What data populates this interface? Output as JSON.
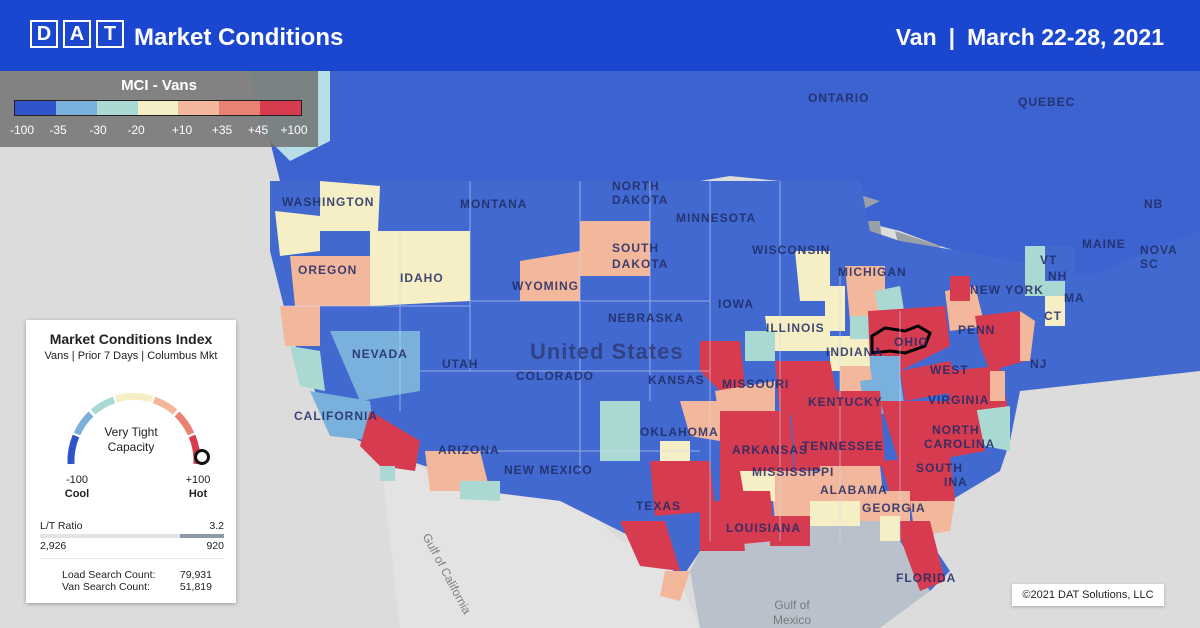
{
  "header": {
    "logo_letters": [
      "D",
      "A",
      "T"
    ],
    "title": "Market Conditions",
    "equipment": "Van",
    "separator": "|",
    "date_range": "March 22-28, 2021"
  },
  "legend": {
    "title": "MCI - Vans",
    "colors": [
      "#2f53c9",
      "#7ab0dc",
      "#a9d9d2",
      "#f6efc6",
      "#f3b89c",
      "#e98273",
      "#d73b50"
    ],
    "ticks": [
      "-100",
      "-35",
      "-30",
      "-20",
      "+10",
      "+35",
      "+45",
      "+100"
    ]
  },
  "card": {
    "title": "Market Conditions Index",
    "subtitle": "Vans | Prior 7 Days | Columbus Mkt",
    "gauge_label_line1": "Very Tight",
    "gauge_label_line2": "Capacity",
    "gauge_value": 100,
    "min_value": "-100",
    "min_label": "Cool",
    "max_value": "+100",
    "max_label": "Hot",
    "lt_ratio_label": "L/T Ratio",
    "lt_ratio_value": "3.2",
    "loads": "2,926",
    "trucks": "920",
    "load_search_label": "Load Search Count:",
    "load_search_value": "79,931",
    "van_search_label": "Van Search Count:",
    "van_search_value": "51,819"
  },
  "map": {
    "country_label": "United States",
    "selected_market": "Columbus",
    "labels": {
      "ontario": "ONTARIO",
      "quebec": "QUEBEC",
      "north_dakota_1": "NORTH",
      "north_dakota_2": "DAKOTA",
      "montana": "MONTANA",
      "washington": "WASHINGTON",
      "minnesota": "MINNESOTA",
      "south_dakota_1": "SOUTH",
      "south_dakota_2": "DAKOTA",
      "oregon": "OREGON",
      "idaho": "IDAHO",
      "wyoming": "WYOMING",
      "wisconsin": "WISCONSIN",
      "michigan": "MICHIGAN",
      "new_york": "NEW YORK",
      "maine": "MAINE",
      "nova_scotia": "NOVA SC",
      "nb": "NB",
      "vt": "VT",
      "nh": "NH",
      "ma": "MA",
      "ct": "CT",
      "nj": "NJ",
      "penn": "PENN",
      "nebraska": "NEBRASKA",
      "iowa": "IOWA",
      "illinois": "ILLINOIS",
      "indiana": "INDIANA",
      "ohio": "OHIO",
      "west_virginia": "WEST",
      "virginia": "VIRGINIA",
      "nevada": "NEVADA",
      "utah": "UTAH",
      "colorado": "COLORADO",
      "kansas": "KANSAS",
      "missouri": "MISSOURI",
      "kentucky": "KENTUCKY",
      "california": "CALIFORNIA",
      "arizona": "ARIZONA",
      "new_mexico": "NEW MEXICO",
      "oklahoma": "OKLAHOMA",
      "arkansas": "ARKANSAS",
      "tennessee": "TENNESSEE",
      "north_carolina_1": "NORTH",
      "north_carolina_2": "CAROLINA",
      "south": "SOUTH",
      "south_2": "INA",
      "mississippi": "MISSISSIPPI",
      "alabama": "ALABAMA",
      "georgia": "GEORGIA",
      "texas": "TEXAS",
      "louisiana": "LOUISIANA",
      "florida": "FLORIDA",
      "gulf_california": "Gulf of California",
      "gulf_mexico_1": "Gulf of",
      "gulf_mexico_2": "Mexico"
    }
  },
  "copyright": "©2021 DAT Solutions, LLC"
}
